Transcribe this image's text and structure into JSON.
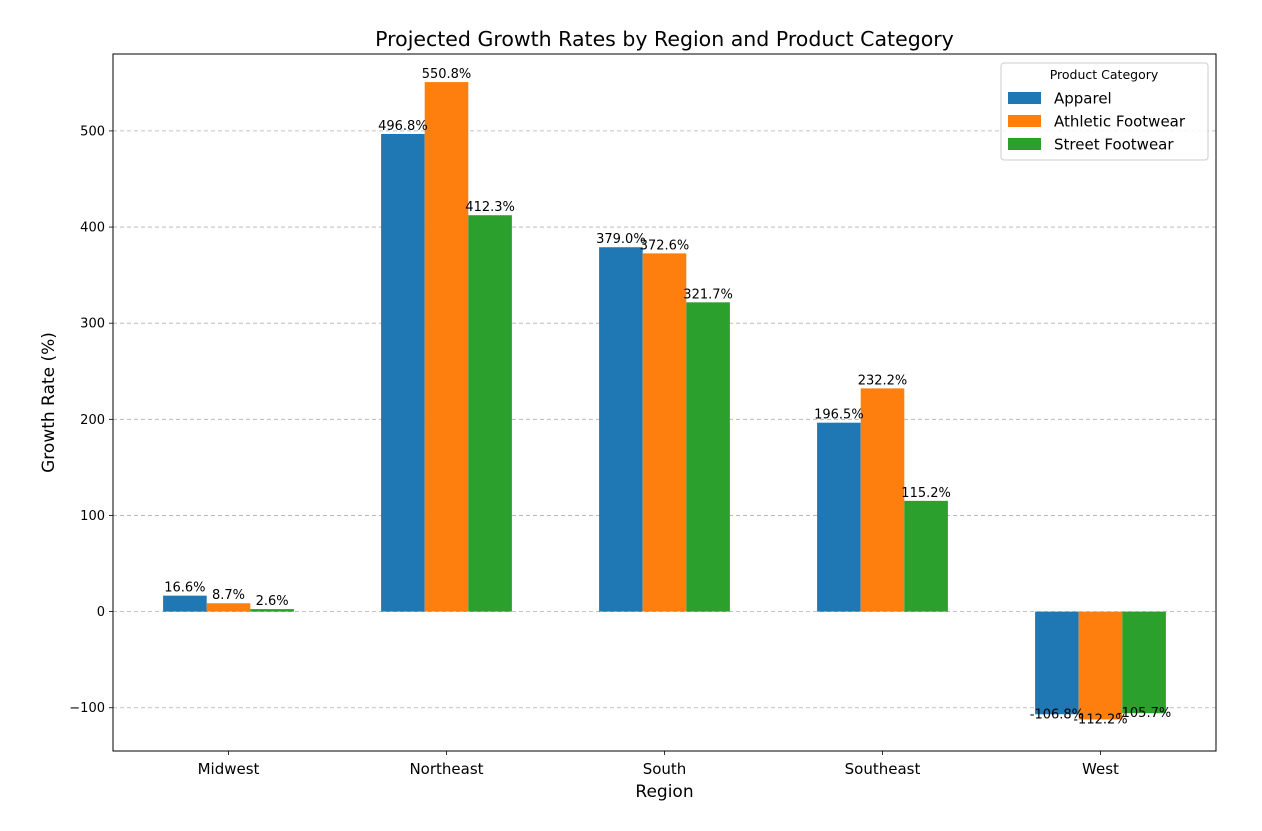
{
  "chart_data": {
    "type": "bar",
    "title": "Projected Growth Rates by Region and Product Category",
    "xlabel": "Region",
    "ylabel": "Growth Rate (%)",
    "categories": [
      "Midwest",
      "Northeast",
      "South",
      "Southeast",
      "West"
    ],
    "series": [
      {
        "name": "Apparel",
        "color": "#1f77b4",
        "values": [
          16.6,
          496.8,
          379.0,
          196.5,
          -106.8
        ]
      },
      {
        "name": "Athletic Footwear",
        "color": "#ff7f0e",
        "values": [
          8.7,
          550.8,
          372.6,
          232.2,
          -112.2
        ]
      },
      {
        "name": "Street Footwear",
        "color": "#2ca02c",
        "values": [
          2.6,
          412.3,
          321.7,
          115.2,
          -105.7
        ]
      }
    ],
    "data_labels": [
      [
        "16.6%",
        "496.8%",
        "379.0%",
        "196.5%",
        "-106.8%"
      ],
      [
        "8.7%",
        "550.8%",
        "372.6%",
        "232.2%",
        "-112.2%"
      ],
      [
        "2.6%",
        "412.3%",
        "321.7%",
        "115.2%",
        "-105.7%"
      ]
    ],
    "yticks": [
      -100,
      0,
      100,
      200,
      300,
      400,
      500
    ],
    "ytick_labels": [
      "−100",
      "0",
      "100",
      "200",
      "300",
      "400",
      "500"
    ],
    "ylim": [
      -145,
      580
    ],
    "grid": "horizontal-dashed",
    "legend": {
      "title": "Product Category",
      "placement": "top-right"
    }
  }
}
